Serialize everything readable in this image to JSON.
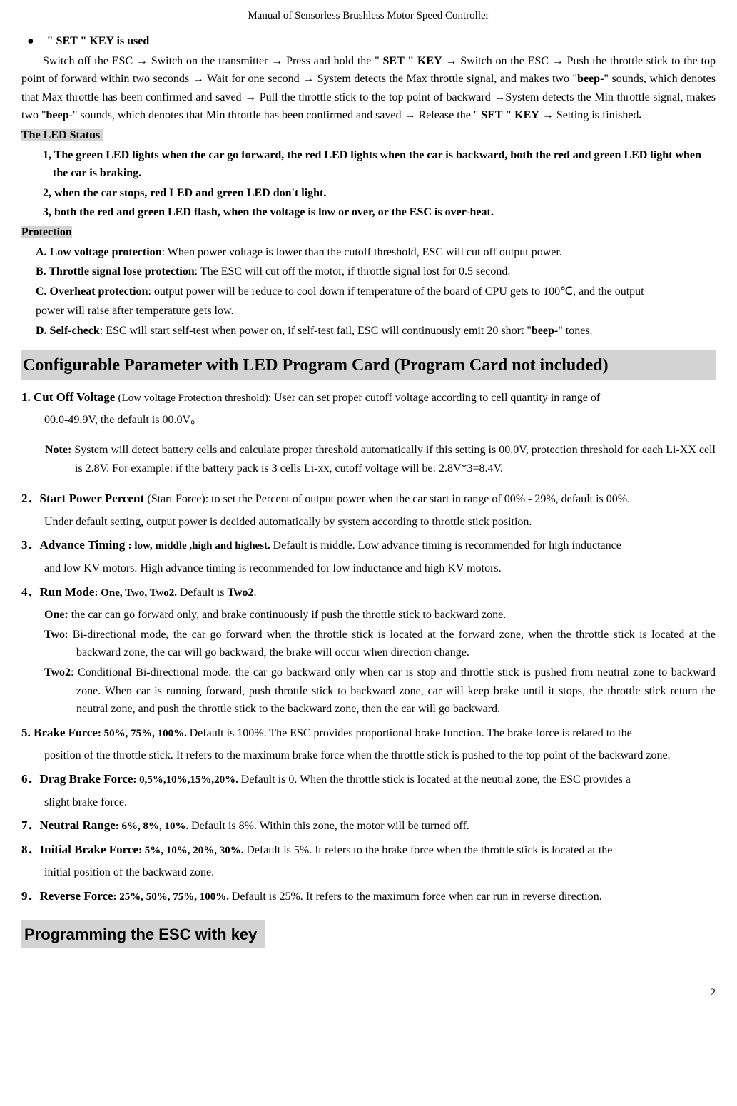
{
  "header": "Manual of Sensorless Brushless Motor Speed Controller",
  "setKeyTitle": "\" SET \" KEY is used",
  "setKeyBody": "Switch off the ESC → Switch on the transmitter → Press and hold the \" SET \" KEY → Switch on the ESC → Push the throttle stick to the top point of forward within two seconds → Wait for one second → System detects the Max throttle signal, and makes two \"beep-\" sounds, which denotes that Max throttle has been confirmed and saved → Pull the throttle stick to the top point of backward →System detects the Min throttle signal, makes two \"beep-\" sounds, which denotes that Min throttle has been confirmed and saved → Release the \" SET \" KEY → Setting is finished.",
  "ledStatusTitle": "The LED Status",
  "led1": "1, The green LED lights when the car go forward, the red LED lights when the car is backward, both the red and green LED light when the car is braking.",
  "led2": "2, when the car stops, red LED and green LED don't light.",
  "led3": "3, both the red and green LED flash, when the voltage is low or over, or the ESC is over-heat.",
  "protectionTitle": "Protection",
  "protA_label": "A. Low voltage protection",
  "protA_body": ": When power voltage is lower than the cutoff threshold, ESC will cut off output power.",
  "protB_label": "B. Throttle signal lose protection",
  "protB_body": ": The ESC will cut off the motor, if throttle signal lost for 0.5 second.",
  "protC_label": "C. Overheat protection",
  "protC_body": ": output power will be reduce to cool down if temperature of the board of CPU gets to 100℃, and the output power will raise after temperature gets low.",
  "protD_label": "D. Self-check",
  "protD_body": ": ESC will start self-test when power on, if self-test fail, ESC will continuously emit 20 short \"beep-\" tones.",
  "configTitle": "Configurable Parameter with LED Program Card (Program Card not included)",
  "p1_num": "1. Cut Off Voltage ",
  "p1_paren": "(Low voltage Protection threshold): ",
  "p1_body": "User can set proper cutoff voltage according to cell quantity in range of 00.0-49.9V, the default is 00.0V。",
  "p1_note_label": "Note:",
  "p1_note": " System will detect battery cells and calculate proper threshold automatically if this setting is 00.0V, protection threshold for each Li-XX cell is 2.8V. For example: if the battery pack is 3 cells Li-xx, cutoff voltage will be: 2.8V*3=8.4V.",
  "p2_num": "2．Start Power Percent ",
  "p2_paren": "(Start Force): ",
  "p2_body": "to set the Percent of output power when the car start in range of 00% - 29%, default is 00%. Under default setting, output power is decided automatically by system according to throttle stick position.",
  "p3_num": "3．Advance Timing ",
  "p3_opts": ": low, middle ,high and highest. ",
  "p3_body": "Default is middle. Low advance timing is recommended for high inductance and low KV motors. High advance timing is recommended for low inductance and high KV motors.",
  "p4_num": "4．Run Mode",
  "p4_opts": ": One, Two, Two2. ",
  "p4_body": "Default is Two2.",
  "p4_one_label": "One:",
  "p4_one": " the car can go forward only, and brake continuously if push the throttle stick to backward zone.",
  "p4_two_label": "Two",
  "p4_two": ": Bi-directional mode, the car go forward when the throttle stick is located at the forward zone, when the throttle stick is located at the backward zone, the car will go backward, the brake will occur when direction change.",
  "p4_two2_label": "Two2",
  "p4_two2": ": Conditional Bi-directional mode. the car go backward only when car is stop and throttle stick is pushed from neutral zone to backward zone. When car is running forward, push throttle stick to backward zone, car will keep brake until it stops, the throttle stick return the neutral zone, and push the throttle stick to the backward zone, then the car will go backward.",
  "p5_num": "5. Brake Force",
  "p5_opts": ": 50%, 75%, 100%. ",
  "p5_body": "Default is 100%. The ESC provides proportional brake function. The brake force is related to the position of the throttle stick. It refers to the maximum brake force when the throttle stick is pushed to the top point of the backward zone.",
  "p6_num": "6．Drag Brake Force",
  "p6_opts": ": 0,5%,10%,15%,20%. ",
  "p6_body": "Default is 0. When the throttle stick is located at the neutral zone, the ESC provides a slight brake force.",
  "p7_num": "7．Neutral Range",
  "p7_opts": ": 6%, 8%, 10%.   ",
  "p7_body": "Default is 8%. Within this zone, the motor will be turned off.",
  "p8_num": "8．Initial Brake Force",
  "p8_opts": ": 5%, 10%, 20%, 30%. ",
  "p8_body": "Default is 5%. It refers to the brake force when the throttle stick is located at the initial position of the backward zone.",
  "p9_num": "9．Reverse Force",
  "p9_opts": ": 25%, 50%, 75%, 100%. ",
  "p9_body": "Default is 25%. It refers to the maximum force when car run in reverse direction.",
  "programmingTitle": "Programming the ESC with key",
  "pageNum": "2"
}
